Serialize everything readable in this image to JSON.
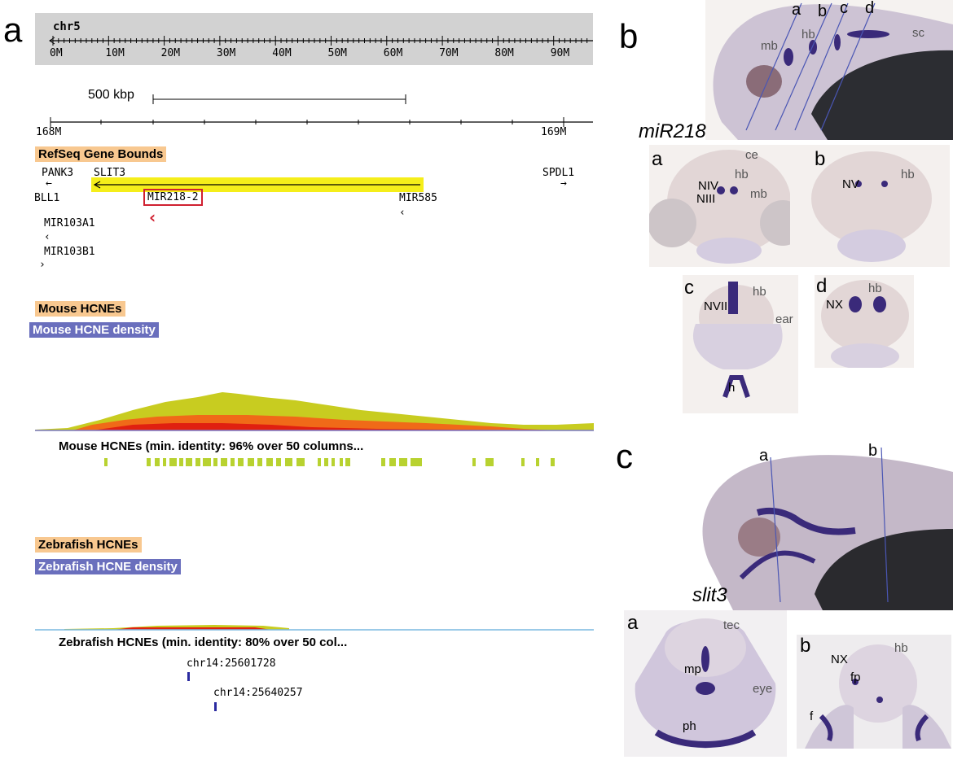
{
  "panels": {
    "a": "a",
    "b": "b",
    "c": "c"
  },
  "ideogram": {
    "chrom": "chr5",
    "ticks": [
      "0M",
      "10M",
      "20M",
      "30M",
      "40M",
      "50M",
      "60M",
      "70M",
      "80M",
      "90M"
    ]
  },
  "scalebar": {
    "label": "500 kbp"
  },
  "ruler": {
    "left": "168M",
    "right": "169M"
  },
  "tracks": {
    "refseq": "RefSeq Gene Bounds",
    "mouse_hcnes": "Mouse HCNEs",
    "mouse_density": "Mouse HCNE density",
    "mouse_header": "Mouse HCNEs (min. identity: 96% over 50 columns...",
    "zebrafish_hcnes": "Zebrafish HCNEs",
    "zebrafish_density": "Zebrafish HCNE density",
    "zebrafish_header": "Zebrafish HCNEs (min. identity: 80% over 50 col..."
  },
  "genes": {
    "pank3": "PANK3",
    "slit3": "SLIT3",
    "spdl1": "SPDL1",
    "bll1": "BLL1",
    "mir218": "MIR218-2",
    "mir585": "MIR585",
    "mir103a1": "MIR103A1",
    "mir103b1": "MIR103B1"
  },
  "zebrafish_hits": [
    "chr14:25601728",
    "chr14:25640257"
  ],
  "gene_labels": {
    "b": "miR218",
    "c": "slit3"
  },
  "b_whole": {
    "lines": [
      "a",
      "b",
      "c",
      "d"
    ],
    "regions": [
      "mb",
      "hb",
      "sc"
    ]
  },
  "b_sections": {
    "a": {
      "letter": "a",
      "labels": [
        "ce",
        "hb",
        "NIV",
        "NIII",
        "mb"
      ]
    },
    "b": {
      "letter": "b",
      "labels": [
        "NV",
        "hb"
      ]
    },
    "c": {
      "letter": "c",
      "labels": [
        "hb",
        "NVII",
        "ear",
        "h"
      ]
    },
    "d": {
      "letter": "d",
      "labels": [
        "hb",
        "NX"
      ]
    }
  },
  "c_whole": {
    "lines": [
      "a",
      "b"
    ]
  },
  "c_sections": {
    "a": {
      "letter": "a",
      "labels": [
        "tec",
        "mp",
        "eye",
        "ph"
      ]
    },
    "b": {
      "letter": "b",
      "labels": [
        "hb",
        "NX",
        "fp",
        "f"
      ]
    }
  },
  "colors": {
    "refseq_bar": "#f5ee1a",
    "mir_box": "#d02030",
    "hcne_yellow": "#c8cc20",
    "hcne_orange": "#f06a18",
    "hcne_red": "#e02010",
    "hcne_tick": "#b8d230",
    "zf_hit": "#2a2aa0",
    "stain_purple": "#3a2a7a"
  }
}
